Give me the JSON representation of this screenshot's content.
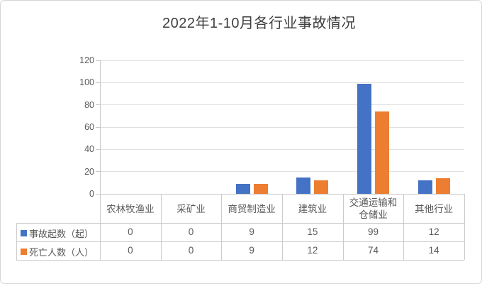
{
  "title": "2022年1-10月各行业事故情况",
  "chart_data": {
    "type": "bar",
    "title": "2022年1-10月各行业事故情况",
    "categories": [
      "农林牧渔业",
      "采矿业",
      "商贸制造业",
      "建筑业",
      "交通运输和仓储业",
      "其他行业"
    ],
    "categories_display": [
      "农林牧渔业",
      "采矿业",
      "商贸制造业",
      "建筑业",
      "交通运输和\n仓储业",
      "其他行业"
    ],
    "series": [
      {
        "name": "事故起数（起）",
        "color": "#4472C4",
        "values": [
          0,
          0,
          9,
          15,
          99,
          12
        ]
      },
      {
        "name": "死亡人数（人）",
        "color": "#ED7D31",
        "values": [
          0,
          0,
          9,
          12,
          74,
          14
        ]
      }
    ],
    "xlabel": "",
    "ylabel": "",
    "ylim": [
      0,
      120
    ],
    "y_tick_step": 20,
    "y_tick_labels": [
      "0",
      "20",
      "40",
      "60",
      "80",
      "100",
      "120"
    ],
    "grid": true,
    "legend_position": "data-table-left",
    "data_table_shown": true
  },
  "colors": {
    "series1": "#4472C4",
    "series2": "#ED7D31",
    "gridline": "#e0e0e0",
    "axis": "#c8c8c8",
    "table_border": "#cbcbcb",
    "text": "#595959",
    "title_text": "#404040"
  }
}
